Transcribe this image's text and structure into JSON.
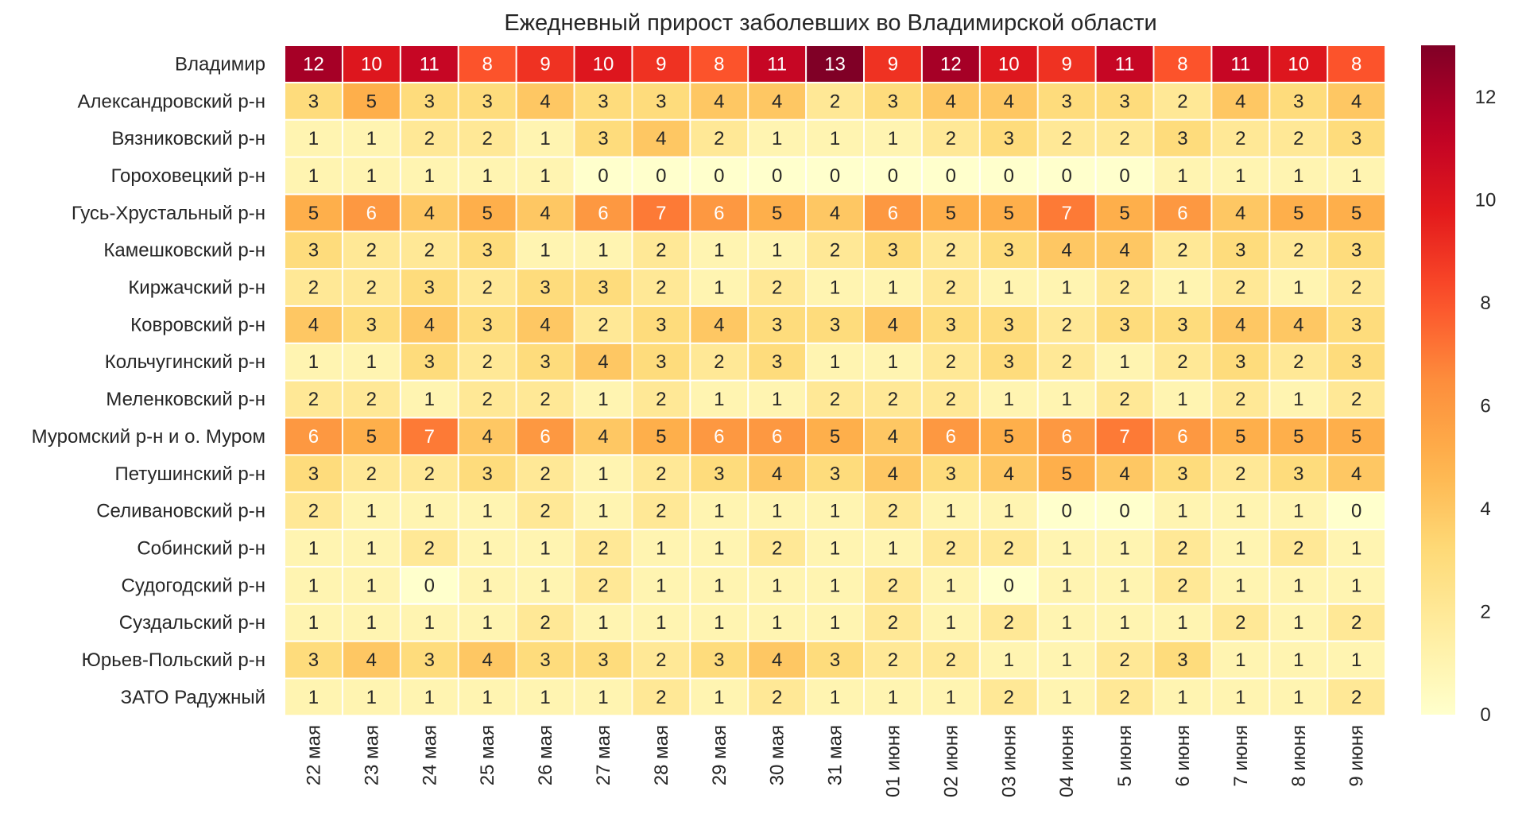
{
  "chart_data": {
    "type": "heatmap",
    "title": "Ежедневный прирост заболевших во Владимирской области",
    "xlabel": "",
    "ylabel": "",
    "rows": [
      "Владимир",
      "Александровский р-н",
      "Вязниковский р-н",
      "Гороховецкий р-н",
      "Гусь-Хрустальный р-н",
      "Камешковский р-н",
      "Киржачский р-н",
      "Ковровский р-н",
      "Кольчугинский р-н",
      "Меленковский р-н",
      "Муромский р-н и о. Муром",
      "Петушинский р-н",
      "Селивановский р-н",
      "Собинский р-н",
      "Судогодский р-н",
      "Суздальский р-н",
      "Юрьев-Польский р-н",
      "ЗАТО Радужный"
    ],
    "columns": [
      "22 мая",
      "23 мая",
      "24 мая",
      "25 мая",
      "26 мая",
      "27 мая",
      "28 мая",
      "29 мая",
      "30 мая",
      "31 мая",
      "01 июня",
      "02 июня",
      "03 июня",
      "04 июня",
      "5 июня",
      "6 июня",
      "7 июня",
      "8 июня",
      "9 июня"
    ],
    "values": [
      [
        12,
        10,
        11,
        8,
        9,
        10,
        9,
        8,
        11,
        13,
        9,
        12,
        10,
        9,
        11,
        8,
        11,
        10,
        8
      ],
      [
        3,
        5,
        3,
        3,
        4,
        3,
        3,
        4,
        4,
        2,
        3,
        4,
        4,
        3,
        3,
        2,
        4,
        3,
        4
      ],
      [
        1,
        1,
        2,
        2,
        1,
        3,
        4,
        2,
        1,
        1,
        1,
        2,
        3,
        2,
        2,
        3,
        2,
        2,
        3
      ],
      [
        1,
        1,
        1,
        1,
        1,
        0,
        0,
        0,
        0,
        0,
        0,
        0,
        0,
        0,
        0,
        1,
        1,
        1,
        1
      ],
      [
        5,
        6,
        4,
        5,
        4,
        6,
        7,
        6,
        5,
        4,
        6,
        5,
        5,
        7,
        5,
        6,
        4,
        5,
        5
      ],
      [
        3,
        2,
        2,
        3,
        1,
        1,
        2,
        1,
        1,
        2,
        3,
        2,
        3,
        4,
        4,
        2,
        3,
        2,
        3
      ],
      [
        2,
        2,
        3,
        2,
        3,
        3,
        2,
        1,
        2,
        1,
        1,
        2,
        1,
        1,
        2,
        1,
        2,
        1,
        2
      ],
      [
        4,
        3,
        4,
        3,
        4,
        2,
        3,
        4,
        3,
        3,
        4,
        3,
        3,
        2,
        3,
        3,
        4,
        4,
        3
      ],
      [
        1,
        1,
        3,
        2,
        3,
        4,
        3,
        2,
        3,
        1,
        1,
        2,
        3,
        2,
        1,
        2,
        3,
        2,
        3
      ],
      [
        2,
        2,
        1,
        2,
        2,
        1,
        2,
        1,
        1,
        2,
        2,
        2,
        1,
        1,
        2,
        1,
        2,
        1,
        2
      ],
      [
        6,
        5,
        7,
        4,
        6,
        4,
        5,
        6,
        6,
        5,
        4,
        6,
        5,
        6,
        7,
        6,
        5,
        5,
        5
      ],
      [
        3,
        2,
        2,
        3,
        2,
        1,
        2,
        3,
        4,
        3,
        4,
        3,
        4,
        5,
        4,
        3,
        2,
        3,
        4
      ],
      [
        2,
        1,
        1,
        1,
        2,
        1,
        2,
        1,
        1,
        1,
        2,
        1,
        1,
        0,
        0,
        1,
        1,
        1,
        0
      ],
      [
        1,
        1,
        2,
        1,
        1,
        2,
        1,
        1,
        2,
        1,
        1,
        2,
        2,
        1,
        1,
        2,
        1,
        2,
        1
      ],
      [
        1,
        1,
        0,
        1,
        1,
        2,
        1,
        1,
        1,
        1,
        2,
        1,
        0,
        1,
        1,
        2,
        1,
        1,
        1
      ],
      [
        1,
        1,
        1,
        1,
        2,
        1,
        1,
        1,
        1,
        1,
        2,
        1,
        2,
        1,
        1,
        1,
        2,
        1,
        2
      ],
      [
        3,
        4,
        3,
        4,
        3,
        3,
        2,
        3,
        4,
        3,
        2,
        2,
        1,
        1,
        2,
        3,
        1,
        1,
        1
      ],
      [
        1,
        1,
        1,
        1,
        1,
        1,
        2,
        1,
        2,
        1,
        1,
        1,
        2,
        1,
        2,
        1,
        1,
        1,
        2
      ]
    ],
    "vmin": 0,
    "vmax": 13,
    "colormap": "YlOrRd",
    "colorbar": {
      "ticks": [
        0,
        2,
        4,
        6,
        8,
        10,
        12
      ],
      "placement": "right"
    },
    "grid": false
  }
}
